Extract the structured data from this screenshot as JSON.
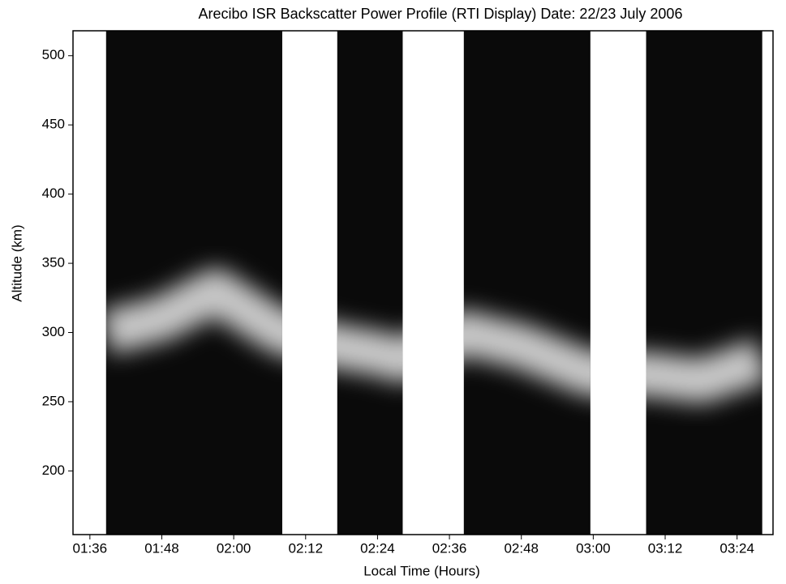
{
  "chart_data": {
    "type": "rti",
    "title": "Arecibo ISR Backscatter Power Profile (RTI Display)  Date: 22/23 July 2006",
    "x_label": "Local Time (Hours)",
    "y_label": "Altitude (km)",
    "xlim": [
      1.553,
      3.5
    ],
    "ylim": [
      154,
      518
    ],
    "xticks": [
      {
        "value": 1.6,
        "label": "01:36"
      },
      {
        "value": 1.8,
        "label": "01:48"
      },
      {
        "value": 2.0,
        "label": "02:00"
      },
      {
        "value": 2.2,
        "label": "02:12"
      },
      {
        "value": 2.4,
        "label": "02:24"
      },
      {
        "value": 2.6,
        "label": "02:36"
      },
      {
        "value": 2.8,
        "label": "02:48"
      },
      {
        "value": 3.0,
        "label": "03:00"
      },
      {
        "value": 3.2,
        "label": "03:12"
      },
      {
        "value": 3.4,
        "label": "03:24"
      }
    ],
    "yticks": [
      200,
      250,
      300,
      350,
      400,
      450,
      500
    ],
    "data_intervals": [
      [
        1.645,
        2.135
      ],
      [
        2.288,
        2.47
      ],
      [
        2.64,
        2.992
      ],
      [
        3.147,
        3.47
      ]
    ],
    "layer": {
      "x": [
        1.645,
        1.8,
        1.95,
        2.1,
        2.135,
        2.288,
        2.4,
        2.47,
        2.64,
        2.8,
        2.992,
        3.147,
        3.3,
        3.47
      ],
      "values": [
        300,
        310,
        330,
        305,
        300,
        290,
        285,
        280,
        300,
        290,
        270,
        270,
        265,
        280
      ]
    },
    "background_color": "#0a0a0a",
    "layer_color": "#e8e8e8"
  }
}
